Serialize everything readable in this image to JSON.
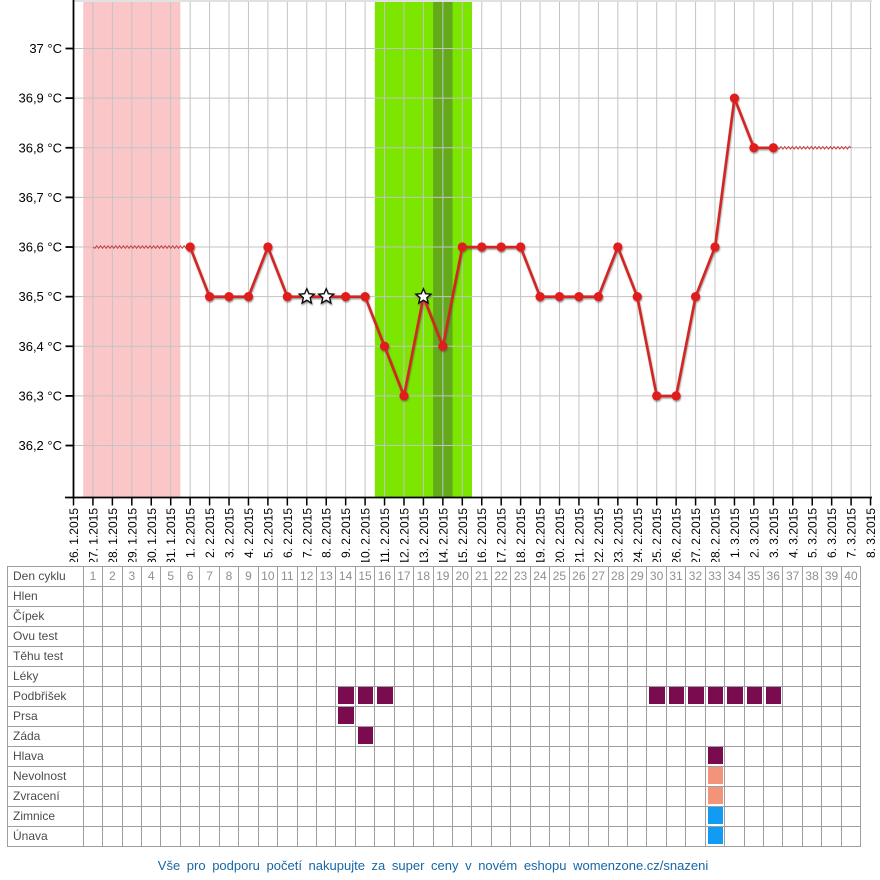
{
  "chart_data": {
    "type": "line",
    "title": "",
    "unit": "°C",
    "ylim": [
      36.1,
      37.1
    ],
    "y_ticks": [
      {
        "value": 37.0,
        "label": "37 °C"
      },
      {
        "value": 36.9,
        "label": "36,9 °C"
      },
      {
        "value": 36.8,
        "label": "36,8 °C"
      },
      {
        "value": 36.7,
        "label": "36,7 °C"
      },
      {
        "value": 36.6,
        "label": "36,6 °C"
      },
      {
        "value": 36.5,
        "label": "36,5 °C"
      },
      {
        "value": 36.4,
        "label": "36,4 °C"
      },
      {
        "value": 36.3,
        "label": "36,3 °C"
      },
      {
        "value": 36.2,
        "label": "36,2 °C"
      }
    ],
    "dates": [
      "26. 1.2015",
      "27. 1.2015",
      "28. 1.2015",
      "29. 1.2015",
      "30. 1.2015",
      "31. 1.2015",
      "1. 2.2015",
      "2. 2.2015",
      "3. 2.2015",
      "4. 2.2015",
      "5. 2.2015",
      "6. 2.2015",
      "7. 2.2015",
      "8. 2.2015",
      "9. 2.2015",
      "10. 2.2015",
      "11. 2.2015",
      "12. 2.2015",
      "13. 2.2015",
      "14. 2.2015",
      "15. 2.2015",
      "16. 2.2015",
      "17. 2.2015",
      "18. 2.2015",
      "19. 2.2015",
      "20. 2.2015",
      "21. 2.2015",
      "22. 2.2015",
      "23. 2.2015",
      "24. 2.2015",
      "25. 2.2015",
      "26. 2.2015",
      "27. 2.2015",
      "28. 2.2015",
      "1. 3.2015",
      "2. 3.2015",
      "3. 3.2015",
      "4. 3.2015",
      "5. 3.2015",
      "6. 3.2015",
      "7. 3.2015",
      "8. 3.2015"
    ],
    "points": [
      {
        "date": "1. 2.2015",
        "temp": 36.6,
        "marker": "dot"
      },
      {
        "date": "2. 2.2015",
        "temp": 36.5,
        "marker": "dot"
      },
      {
        "date": "3. 2.2015",
        "temp": 36.5,
        "marker": "dot"
      },
      {
        "date": "4. 2.2015",
        "temp": 36.5,
        "marker": "dot"
      },
      {
        "date": "5. 2.2015",
        "temp": 36.6,
        "marker": "dot"
      },
      {
        "date": "6. 2.2015",
        "temp": 36.5,
        "marker": "dot"
      },
      {
        "date": "7. 2.2015",
        "temp": 36.5,
        "marker": "star"
      },
      {
        "date": "8. 2.2015",
        "temp": 36.5,
        "marker": "star"
      },
      {
        "date": "9. 2.2015",
        "temp": 36.5,
        "marker": "dot"
      },
      {
        "date": "10. 2.2015",
        "temp": 36.5,
        "marker": "dot"
      },
      {
        "date": "11. 2.2015",
        "temp": 36.4,
        "marker": "dot"
      },
      {
        "date": "12. 2.2015",
        "temp": 36.3,
        "marker": "dot"
      },
      {
        "date": "13. 2.2015",
        "temp": 36.5,
        "marker": "star"
      },
      {
        "date": "14. 2.2015",
        "temp": 36.4,
        "marker": "dot"
      },
      {
        "date": "15. 2.2015",
        "temp": 36.6,
        "marker": "dot"
      },
      {
        "date": "16. 2.2015",
        "temp": 36.6,
        "marker": "dot"
      },
      {
        "date": "17. 2.2015",
        "temp": 36.6,
        "marker": "dot"
      },
      {
        "date": "18. 2.2015",
        "temp": 36.6,
        "marker": "dot"
      },
      {
        "date": "19. 2.2015",
        "temp": 36.5,
        "marker": "dot"
      },
      {
        "date": "20. 2.2015",
        "temp": 36.5,
        "marker": "dot"
      },
      {
        "date": "21. 2.2015",
        "temp": 36.5,
        "marker": "dot"
      },
      {
        "date": "22. 2.2015",
        "temp": 36.5,
        "marker": "dot"
      },
      {
        "date": "23. 2.2015",
        "temp": 36.6,
        "marker": "dot"
      },
      {
        "date": "24. 2.2015",
        "temp": 36.5,
        "marker": "dot"
      },
      {
        "date": "25. 2.2015",
        "temp": 36.3,
        "marker": "dot"
      },
      {
        "date": "26. 2.2015",
        "temp": 36.3,
        "marker": "dot"
      },
      {
        "date": "27. 2.2015",
        "temp": 36.5,
        "marker": "dot"
      },
      {
        "date": "28. 2.2015",
        "temp": 36.6,
        "marker": "dot"
      },
      {
        "date": "1. 3.2015",
        "temp": 36.9,
        "marker": "dot"
      },
      {
        "date": "2. 3.2015",
        "temp": 36.8,
        "marker": "dot"
      },
      {
        "date": "3. 3.2015",
        "temp": 36.8,
        "marker": "dot"
      }
    ],
    "projection_lines": [
      {
        "from": "27. 1.2015",
        "to": "1. 2.2015",
        "temp": 36.6
      },
      {
        "from": "3. 3.2015",
        "to": "7. 3.2015",
        "temp": 36.8
      }
    ],
    "bands": [
      {
        "name": "menstruation",
        "from": "27. 1.2015",
        "to": "31. 1.2015",
        "color": "#fbc6c8"
      },
      {
        "name": "fertile-window",
        "from": "11. 2.2015",
        "to": "15. 2.2015",
        "color": "#7ce600"
      },
      {
        "name": "ovulation-day",
        "from": "14. 2.2015",
        "to": "14. 2.2015",
        "color": "#62aa1a"
      }
    ],
    "colors": {
      "line": "#d32522",
      "dot": "#e01a1a",
      "projection": "#c03a3c",
      "grid": "#c2c3c5",
      "axis": "#000000",
      "star_fill": "#ffffff",
      "star_stroke": "#111111"
    },
    "legend_position": "none",
    "grid": "on"
  },
  "table": {
    "day_row_label": "Den cyklu",
    "day_numbers": [
      "1",
      "2",
      "3",
      "4",
      "5",
      "6",
      "7",
      "8",
      "9",
      "10",
      "11",
      "12",
      "13",
      "14",
      "15",
      "16",
      "17",
      "18",
      "19",
      "20",
      "21",
      "22",
      "23",
      "24",
      "25",
      "26",
      "27",
      "28",
      "29",
      "30",
      "31",
      "32",
      "33",
      "34",
      "35",
      "36",
      "37",
      "38",
      "39",
      "40"
    ],
    "mark_colors": {
      "purple": "#7a0b4f",
      "salmon": "#f2947a",
      "blue": "#129bf2"
    },
    "rows": [
      {
        "label": "Hlen",
        "mark_color": "",
        "marked_days": []
      },
      {
        "label": "Čípek",
        "mark_color": "",
        "marked_days": []
      },
      {
        "label": "Ovu test",
        "mark_color": "",
        "marked_days": []
      },
      {
        "label": "Těhu test",
        "mark_color": "",
        "marked_days": []
      },
      {
        "label": "Léky",
        "mark_color": "",
        "marked_days": []
      },
      {
        "label": "Podbřišek",
        "mark_color": "#7a0b4f",
        "marked_days": [
          14,
          15,
          16,
          30,
          31,
          32,
          33,
          34,
          35,
          36
        ]
      },
      {
        "label": "Prsa",
        "mark_color": "#7a0b4f",
        "marked_days": [
          14
        ]
      },
      {
        "label": "Záda",
        "mark_color": "#7a0b4f",
        "marked_days": [
          15
        ]
      },
      {
        "label": "Hlava",
        "mark_color": "#7a0b4f",
        "marked_days": [
          33
        ]
      },
      {
        "label": "Nevolnost",
        "mark_color": "#f2947a",
        "marked_days": [
          33
        ]
      },
      {
        "label": "Zvracení",
        "mark_color": "#f2947a",
        "marked_days": [
          33
        ]
      },
      {
        "label": "Zimnice",
        "mark_color": "#129bf2",
        "marked_days": [
          33
        ]
      },
      {
        "label": "Únava",
        "mark_color": "#129bf2",
        "marked_days": [
          33
        ]
      }
    ]
  },
  "footer": {
    "text": "Vše pro podporu početí nakupujte za super ceny v novém eshopu womenzone.cz/snazeni"
  }
}
